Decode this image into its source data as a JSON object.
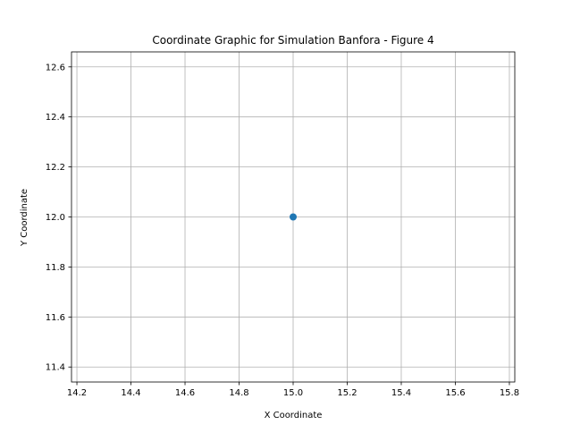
{
  "chart_data": {
    "type": "scatter",
    "title": "Coordinate Graphic for Simulation Banfora - Figure 4",
    "xlabel": "X Coordinate",
    "ylabel": "Y Coordinate",
    "xlim": [
      14.18,
      15.82
    ],
    "ylim": [
      11.34,
      12.66
    ],
    "xticks": [
      14.2,
      14.4,
      14.6,
      14.8,
      15.0,
      15.2,
      15.4,
      15.6,
      15.8
    ],
    "xtick_labels": [
      "14.2",
      "14.4",
      "14.6",
      "14.8",
      "15.0",
      "15.2",
      "15.4",
      "15.6",
      "15.8"
    ],
    "yticks": [
      11.4,
      11.6,
      11.8,
      12.0,
      12.2,
      12.4,
      12.6
    ],
    "ytick_labels": [
      "11.4",
      "11.6",
      "11.8",
      "12.0",
      "12.2",
      "12.4",
      "12.6"
    ],
    "grid": true,
    "series": [
      {
        "x": [
          15.0
        ],
        "y": [
          12.0
        ],
        "color": "#1f77b4"
      }
    ]
  }
}
